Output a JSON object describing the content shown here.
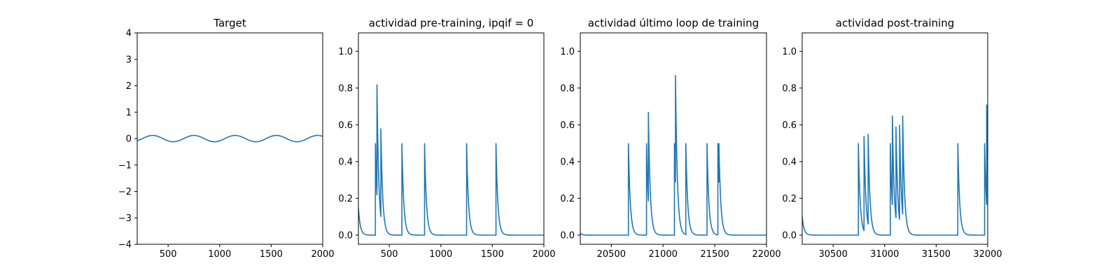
{
  "chart_data": [
    {
      "type": "line",
      "title": "Target",
      "xlim": [
        200,
        2000
      ],
      "ylim": [
        -4,
        4
      ],
      "xticks": [
        500,
        1000,
        1500,
        2000
      ],
      "yticks": [
        -4,
        -3,
        -2,
        -1,
        0,
        1,
        2,
        3,
        4
      ],
      "color": "#1f77b4",
      "signal": {
        "kind": "sine",
        "amplitude": 0.12,
        "period": 400,
        "zero_crossing": 250
      }
    },
    {
      "type": "line",
      "title": "actividad pre-training, ipqif = 0",
      "xlim": [
        200,
        2000
      ],
      "ylim": [
        -0.05,
        1.1
      ],
      "xticks": [
        500,
        1000,
        1500,
        2000
      ],
      "yticks": [
        0.0,
        0.2,
        0.4,
        0.6,
        0.8,
        1.0
      ],
      "color": "#1f77b4",
      "initial_value": 0.15,
      "spikes": [
        {
          "x": 365,
          "peak": 0.5
        },
        {
          "x": 380,
          "peak": 0.82
        },
        {
          "x": 418,
          "peak": 0.58
        },
        {
          "x": 622,
          "peak": 0.5
        },
        {
          "x": 842,
          "peak": 0.5
        },
        {
          "x": 1250,
          "peak": 0.5
        },
        {
          "x": 1535,
          "peak": 0.5
        }
      ]
    },
    {
      "type": "line",
      "title": "actividad último loop de training",
      "xlim": [
        20200,
        22000
      ],
      "ylim": [
        -0.05,
        1.1
      ],
      "xticks": [
        20500,
        21000,
        21500,
        22000
      ],
      "yticks": [
        0.0,
        0.2,
        0.4,
        0.6,
        0.8,
        1.0
      ],
      "color": "#1f77b4",
      "initial_value": 0.01,
      "spikes": [
        {
          "x": 20665,
          "peak": 0.5
        },
        {
          "x": 20840,
          "peak": 0.5
        },
        {
          "x": 20858,
          "peak": 0.67
        },
        {
          "x": 21110,
          "peak": 0.5
        },
        {
          "x": 21120,
          "peak": 0.87
        },
        {
          "x": 21220,
          "peak": 0.5
        },
        {
          "x": 21425,
          "peak": 0.5
        },
        {
          "x": 21530,
          "peak": 0.5
        },
        {
          "x": 21540,
          "peak": 0.5
        }
      ]
    },
    {
      "type": "line",
      "title": "actividad post-training",
      "xlim": [
        30200,
        32000
      ],
      "ylim": [
        -0.05,
        1.1
      ],
      "xticks": [
        30500,
        31000,
        31500,
        32000
      ],
      "yticks": [
        0.0,
        0.2,
        0.4,
        0.6,
        0.8,
        1.0
      ],
      "color": "#1f77b4",
      "initial_value": 0.1,
      "spikes": [
        {
          "x": 30745,
          "peak": 0.5
        },
        {
          "x": 30800,
          "peak": 0.54
        },
        {
          "x": 30840,
          "peak": 0.55
        },
        {
          "x": 31055,
          "peak": 0.5
        },
        {
          "x": 31075,
          "peak": 0.65
        },
        {
          "x": 31110,
          "peak": 0.59
        },
        {
          "x": 31145,
          "peak": 0.6
        },
        {
          "x": 31175,
          "peak": 0.65
        },
        {
          "x": 31710,
          "peak": 0.5
        },
        {
          "x": 31970,
          "peak": 0.5
        },
        {
          "x": 31990,
          "peak": 0.71
        }
      ]
    }
  ]
}
